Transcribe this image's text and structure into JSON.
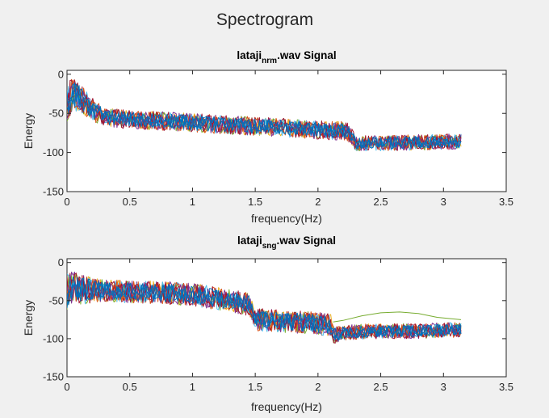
{
  "figure": {
    "title": "Spectrogram",
    "background": "#f0f0f0"
  },
  "chart_data": [
    {
      "type": "line",
      "title": "lataji",
      "title_subscript": "nrm",
      "title_suffix": ".wav Signal",
      "xlabel": "frequency(Hz)",
      "ylabel": "Energy",
      "xlim": [
        0,
        3.5
      ],
      "ylim": [
        -150,
        5
      ],
      "xticks": [
        "0",
        "0.5",
        "1",
        "1.5",
        "2",
        "2.5",
        "3",
        "3.5"
      ],
      "xtick_values": [
        0,
        0.5,
        1,
        1.5,
        2,
        2.5,
        3,
        3.5
      ],
      "yticks": [
        "0",
        "-50",
        "-100",
        "-150"
      ],
      "ytick_values": [
        0,
        -50,
        -100,
        -150
      ],
      "grid": false,
      "x_end": 3.14,
      "cutoff": 2.25,
      "series_colors": [
        "#0072BD",
        "#D95319",
        "#EDB120",
        "#7E2F8E",
        "#77AC30",
        "#4DBEEE",
        "#A2142F"
      ],
      "envelope": {
        "x": [
          0,
          0.05,
          0.1,
          0.2,
          0.3,
          0.5,
          0.8,
          1.0,
          1.3,
          1.6,
          1.9,
          2.1,
          2.2,
          2.25,
          2.3,
          2.5,
          2.8,
          3.14
        ],
        "mean": [
          -35,
          -25,
          -30,
          -45,
          -55,
          -58,
          -60,
          -62,
          -65,
          -67,
          -70,
          -72,
          -72,
          -75,
          -88,
          -88,
          -87,
          -86
        ],
        "spread": [
          25,
          20,
          20,
          15,
          12,
          12,
          12,
          12,
          12,
          12,
          12,
          12,
          12,
          12,
          10,
          10,
          10,
          10
        ]
      }
    },
    {
      "type": "line",
      "title": "lataji",
      "title_subscript": "sng",
      "title_suffix": ".wav Signal",
      "xlabel": "frequency(Hz)",
      "ylabel": "Energy",
      "xlim": [
        0,
        3.5
      ],
      "ylim": [
        -150,
        5
      ],
      "xticks": [
        "0",
        "0.5",
        "1",
        "1.5",
        "2",
        "2.5",
        "3",
        "3.5"
      ],
      "xtick_values": [
        0,
        0.5,
        1,
        1.5,
        2,
        2.5,
        3,
        3.5
      ],
      "yticks": [
        "0",
        "-50",
        "-100"
      ],
      "ytick_values": [
        0,
        -50,
        -100
      ],
      "ytick_extra": [
        "-150"
      ],
      "ytick_extra_values": [
        -150
      ],
      "grid": false,
      "x_end": 3.14,
      "cutoff": 2.12,
      "series_colors": [
        "#0072BD",
        "#D95319",
        "#EDB120",
        "#7E2F8E",
        "#77AC30",
        "#4DBEEE",
        "#A2142F"
      ],
      "envelope": {
        "x": [
          0,
          0.05,
          0.1,
          0.3,
          0.5,
          0.8,
          1.0,
          1.3,
          1.45,
          1.5,
          1.8,
          2.0,
          2.1,
          2.12,
          2.2,
          2.5,
          2.8,
          3.14
        ],
        "mean": [
          -40,
          -30,
          -35,
          -38,
          -38,
          -40,
          -42,
          -50,
          -55,
          -75,
          -78,
          -80,
          -82,
          -95,
          -92,
          -90,
          -90,
          -88
        ],
        "spread": [
          25,
          20,
          20,
          15,
          15,
          15,
          15,
          15,
          15,
          15,
          15,
          15,
          15,
          12,
          10,
          10,
          10,
          10
        ]
      },
      "green_bump": {
        "x": [
          2.12,
          2.2,
          2.35,
          2.5,
          2.65,
          2.8,
          2.95,
          3.14
        ],
        "y": [
          -78,
          -76,
          -70,
          -66,
          -65,
          -67,
          -72,
          -75
        ]
      }
    }
  ]
}
